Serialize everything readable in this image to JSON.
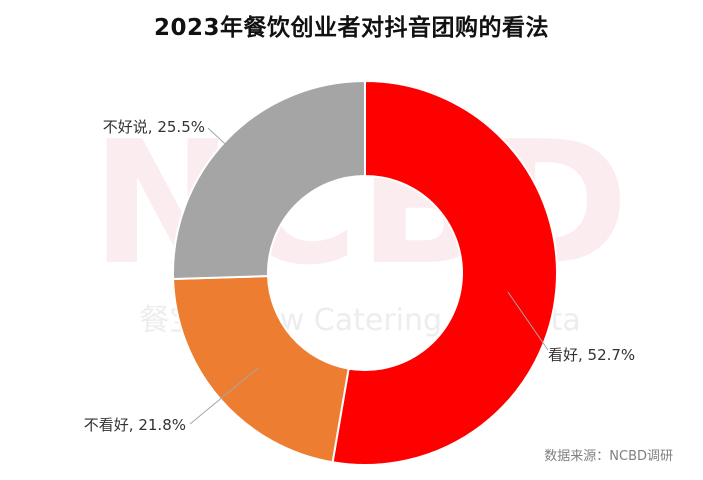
{
  "title": "2023年餐饮创业者对抖音团购的看法",
  "watermark": {
    "logo_text": "NCBD",
    "brand_text": "餐宝典 New Catering Big Data"
  },
  "source": "数据来源：NCBD调研",
  "chart_data": {
    "type": "pie",
    "style": "donut",
    "title": "2023年餐饮创业者对抖音团购的看法",
    "legend": "none",
    "start_angle_deg": 0,
    "direction": "clockwise",
    "slices": [
      {
        "label": "看好",
        "value": 52.7,
        "display": "看好, 52.7%",
        "color": "#ff0000"
      },
      {
        "label": "不看好",
        "value": 21.8,
        "display": "不看好, 21.8%",
        "color": "#ed7d31"
      },
      {
        "label": "不好说",
        "value": 25.5,
        "display": "不好说, 25.5%",
        "color": "#a5a5a5"
      }
    ]
  }
}
